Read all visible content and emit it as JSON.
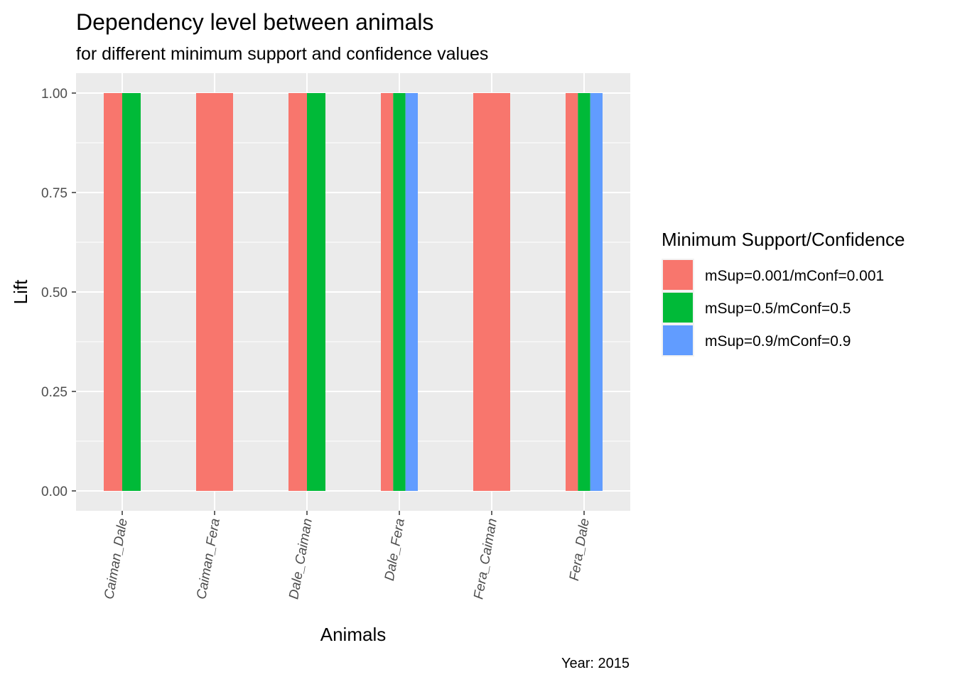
{
  "chart_data": {
    "type": "bar",
    "title": "Dependency level between animals",
    "subtitle": "for different minimum support and confidence values",
    "xlabel": "Animals",
    "ylabel": "Lift",
    "caption": "Year: 2015",
    "ylim": [
      -0.05,
      1.05
    ],
    "yticks": [
      "0.00",
      "0.25",
      "0.50",
      "0.75",
      "1.00"
    ],
    "ytick_values": [
      0,
      0.25,
      0.5,
      0.75,
      1.0
    ],
    "categories": [
      "Caiman_Dale",
      "Caiman_Fera",
      "Dale_Caiman",
      "Dale_Fera",
      "Fera_Caiman",
      "Fera_Dale"
    ],
    "legend_title": "Minimum Support/Confidence",
    "legend_position": "right",
    "grid": true,
    "series": [
      {
        "name": "mSup=0.001/mConf=0.001",
        "color": "#F8766D",
        "values": [
          1.0,
          1.0,
          1.0,
          1.0,
          1.0,
          1.0
        ]
      },
      {
        "name": "mSup=0.5/mConf=0.5",
        "color": "#00BA38",
        "values": [
          1.0,
          null,
          1.0,
          1.0,
          null,
          1.0
        ]
      },
      {
        "name": "mSup=0.9/mConf=0.9",
        "color": "#619CFF",
        "values": [
          null,
          null,
          null,
          1.0,
          null,
          1.0
        ]
      }
    ]
  }
}
